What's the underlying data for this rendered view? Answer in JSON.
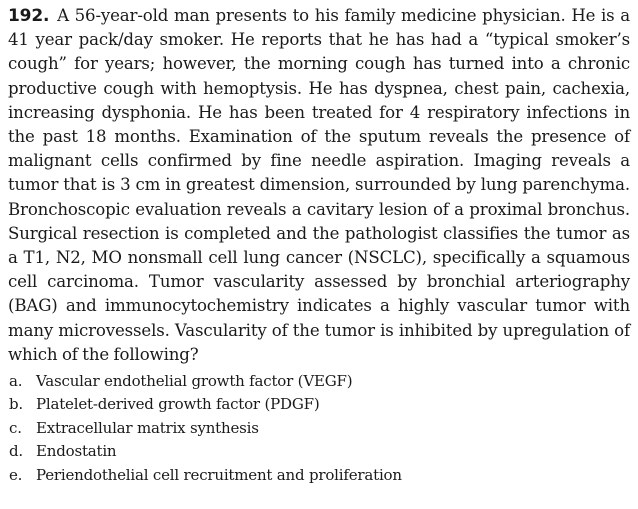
{
  "question": {
    "number": "192.",
    "stem": "A 56-year-old man presents to his family medicine physician. He is a 41 year pack/day smoker. He reports that he has had a “typical smoker’s cough” for years; however, the morning cough has turned into a chronic productive cough with hemoptysis. He has dyspnea, chest pain, cachexia, increasing dysphonia. He has been treated for 4 respiratory infections in the past 18 months. Examination of the sputum reveals the presence of malignant cells confirmed by fine needle aspiration. Imaging reveals a tumor that is 3 cm in greatest dimension, surrounded by lung parenchyma. Bronchoscopic evaluation reveals a cavitary lesion of a proximal bronchus. Surgical resection is completed and the pathologist classifies the tumor as a T1, N2, MO nonsmall cell lung cancer (NSCLC), specifically a squamous cell carcinoma. Tumor vascularity assessed by bronchial arteriography (BAG) and immunocytochemistry indicates a highly vascular tumor with many microvessels. Vascularity of the tumor is inhibited by upregulation of which of the following?",
    "options": [
      {
        "letter": "a.",
        "text": "Vascular endothelial growth factor (VEGF)"
      },
      {
        "letter": "b.",
        "text": "Platelet-derived growth factor (PDGF)"
      },
      {
        "letter": "c.",
        "text": "Extracellular matrix synthesis"
      },
      {
        "letter": "d.",
        "text": "Endostatin"
      },
      {
        "letter": "e.",
        "text": "Periendothelial cell recruitment and proliferation"
      }
    ]
  }
}
